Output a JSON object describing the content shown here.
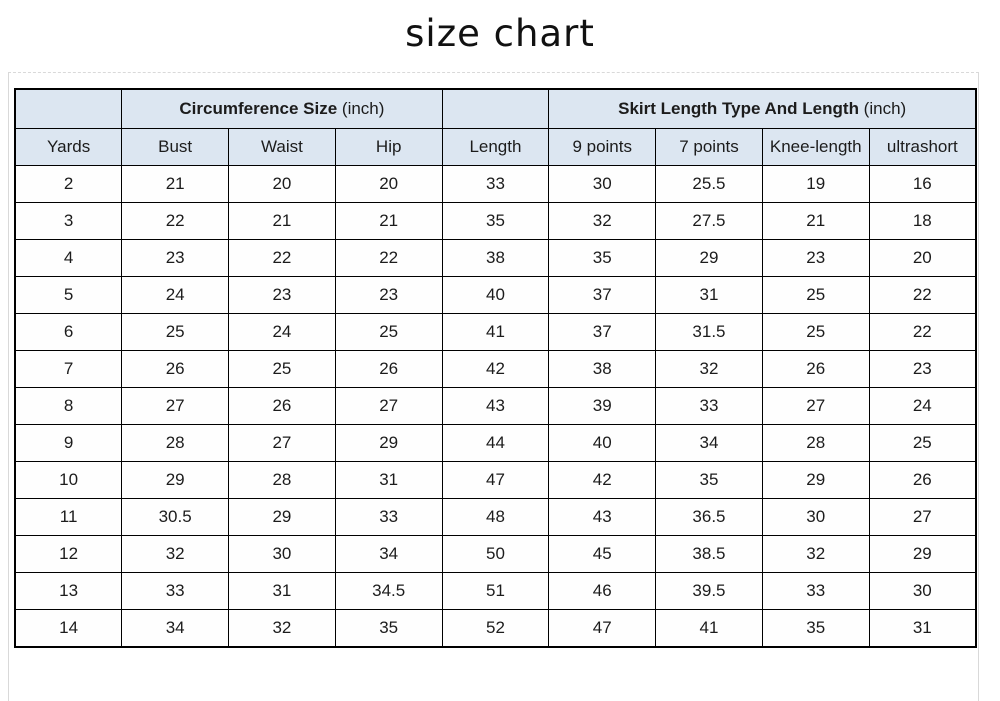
{
  "title": "size chart",
  "colors": {
    "header_fill": "#dce6f1",
    "border": "#000000",
    "page_line": "#d9d9d9"
  },
  "chart_data": {
    "type": "table",
    "title": "size chart",
    "group_headers": [
      {
        "text": "",
        "unit": "",
        "span": 1
      },
      {
        "text": "Circumference Size",
        "unit": " (inch)",
        "span": 3
      },
      {
        "text": "",
        "unit": "",
        "span": 1
      },
      {
        "text": "Skirt Length Type And Length",
        "unit": " (inch)",
        "span": 4
      }
    ],
    "columns": [
      "Yards",
      "Bust",
      "Waist",
      "Hip",
      "Length",
      "9 points",
      "7 points",
      "Knee-length",
      "ultrashort"
    ],
    "rows": [
      [
        "2",
        "21",
        "20",
        "20",
        "33",
        "30",
        "25.5",
        "19",
        "16"
      ],
      [
        "3",
        "22",
        "21",
        "21",
        "35",
        "32",
        "27.5",
        "21",
        "18"
      ],
      [
        "4",
        "23",
        "22",
        "22",
        "38",
        "35",
        "29",
        "23",
        "20"
      ],
      [
        "5",
        "24",
        "23",
        "23",
        "40",
        "37",
        "31",
        "25",
        "22"
      ],
      [
        "6",
        "25",
        "24",
        "25",
        "41",
        "37",
        "31.5",
        "25",
        "22"
      ],
      [
        "7",
        "26",
        "25",
        "26",
        "42",
        "38",
        "32",
        "26",
        "23"
      ],
      [
        "8",
        "27",
        "26",
        "27",
        "43",
        "39",
        "33",
        "27",
        "24"
      ],
      [
        "9",
        "28",
        "27",
        "29",
        "44",
        "40",
        "34",
        "28",
        "25"
      ],
      [
        "10",
        "29",
        "28",
        "31",
        "47",
        "42",
        "35",
        "29",
        "26"
      ],
      [
        "11",
        "30.5",
        "29",
        "33",
        "48",
        "43",
        "36.5",
        "30",
        "27"
      ],
      [
        "12",
        "32",
        "30",
        "34",
        "50",
        "45",
        "38.5",
        "32",
        "29"
      ],
      [
        "13",
        "33",
        "31",
        "34.5",
        "51",
        "46",
        "39.5",
        "33",
        "30"
      ],
      [
        "14",
        "34",
        "32",
        "35",
        "52",
        "47",
        "41",
        "35",
        "31"
      ]
    ]
  }
}
